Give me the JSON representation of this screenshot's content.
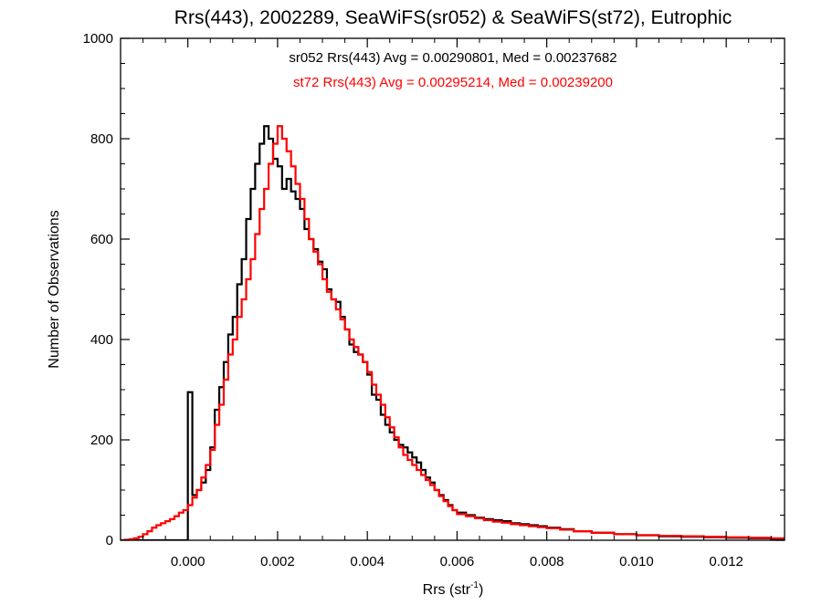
{
  "chart_data": {
    "type": "line",
    "title": "Rrs(443), 2002289, SeaWiFS(sr052) & SeaWiFS(st72), Eutrophic",
    "xlabel_main": "Rrs (str",
    "xlabel_sup": "-1",
    "xlabel_tail": ")",
    "ylabel": "Number of Observations",
    "xlim": [
      -0.0015,
      0.0133
    ],
    "ylim": [
      0,
      1000
    ],
    "x_ticks": [
      0.0,
      0.002,
      0.004,
      0.006,
      0.008,
      0.01,
      0.012
    ],
    "x_tick_labels": [
      "0.000",
      "0.002",
      "0.004",
      "0.006",
      "0.008",
      "0.010",
      "0.012"
    ],
    "y_ticks": [
      0,
      200,
      400,
      600,
      800,
      1000
    ],
    "y_tick_labels": [
      "0",
      "200",
      "400",
      "600",
      "800",
      "1000"
    ],
    "annotations": [
      {
        "text": "sr052 Rrs(443) Avg = 0.00290801, Med = 0.00237682",
        "color": "#000000"
      },
      {
        "text": "st72 Rrs(443) Avg = 0.00295214, Med = 0.00239200",
        "color": "#ff0000"
      }
    ],
    "series": [
      {
        "color": "#000000",
        "points": [
          [
            -0.0015,
            0
          ],
          [
            0.0,
            0
          ],
          [
            0.0,
            295
          ],
          [
            0.0001,
            90
          ],
          [
            0.0002,
            100
          ],
          [
            0.0003,
            115
          ],
          [
            0.0004,
            140
          ],
          [
            0.0005,
            185
          ],
          [
            0.0006,
            260
          ],
          [
            0.0007,
            305
          ],
          [
            0.0008,
            355
          ],
          [
            0.0009,
            410
          ],
          [
            0.001,
            445
          ],
          [
            0.0011,
            510
          ],
          [
            0.0012,
            560
          ],
          [
            0.0013,
            640
          ],
          [
            0.0014,
            700
          ],
          [
            0.0015,
            750
          ],
          [
            0.0016,
            790
          ],
          [
            0.0017,
            825
          ],
          [
            0.0018,
            800
          ],
          [
            0.0019,
            760
          ],
          [
            0.002,
            745
          ],
          [
            0.0021,
            700
          ],
          [
            0.0022,
            720
          ],
          [
            0.0023,
            695
          ],
          [
            0.0024,
            680
          ],
          [
            0.0025,
            660
          ],
          [
            0.0026,
            620
          ],
          [
            0.0027,
            600
          ],
          [
            0.0028,
            580
          ],
          [
            0.0029,
            555
          ],
          [
            0.003,
            540
          ],
          [
            0.0031,
            500
          ],
          [
            0.0032,
            480
          ],
          [
            0.0033,
            475
          ],
          [
            0.0034,
            445
          ],
          [
            0.0035,
            420
          ],
          [
            0.0036,
            390
          ],
          [
            0.0037,
            375
          ],
          [
            0.0038,
            370
          ],
          [
            0.0039,
            355
          ],
          [
            0.004,
            330
          ],
          [
            0.0041,
            290
          ],
          [
            0.0042,
            280
          ],
          [
            0.0043,
            250
          ],
          [
            0.0044,
            230
          ],
          [
            0.0045,
            215
          ],
          [
            0.0046,
            200
          ],
          [
            0.0047,
            190
          ],
          [
            0.0048,
            185
          ],
          [
            0.0049,
            175
          ],
          [
            0.005,
            165
          ],
          [
            0.0051,
            155
          ],
          [
            0.0052,
            140
          ],
          [
            0.0053,
            125
          ],
          [
            0.0054,
            115
          ],
          [
            0.0055,
            100
          ],
          [
            0.0056,
            90
          ],
          [
            0.0057,
            80
          ],
          [
            0.0058,
            70
          ],
          [
            0.0059,
            60
          ],
          [
            0.006,
            55
          ],
          [
            0.0062,
            50
          ],
          [
            0.0064,
            45
          ],
          [
            0.0066,
            42
          ],
          [
            0.0068,
            40
          ],
          [
            0.007,
            38
          ],
          [
            0.0072,
            34
          ],
          [
            0.0074,
            32
          ],
          [
            0.0076,
            30
          ],
          [
            0.0078,
            28
          ],
          [
            0.008,
            25
          ],
          [
            0.0083,
            22
          ],
          [
            0.0086,
            18
          ],
          [
            0.009,
            15
          ],
          [
            0.0095,
            12
          ],
          [
            0.01,
            10
          ],
          [
            0.0105,
            8
          ],
          [
            0.011,
            7
          ],
          [
            0.0115,
            6
          ],
          [
            0.012,
            5
          ],
          [
            0.0125,
            4
          ],
          [
            0.013,
            3
          ],
          [
            0.0133,
            3
          ]
        ]
      },
      {
        "color": "#ff0000",
        "points": [
          [
            -0.0015,
            0
          ],
          [
            -0.0014,
            1
          ],
          [
            -0.0013,
            2
          ],
          [
            -0.0012,
            4
          ],
          [
            -0.0011,
            7
          ],
          [
            -0.001,
            12
          ],
          [
            -0.0009,
            18
          ],
          [
            -0.0008,
            25
          ],
          [
            -0.0007,
            30
          ],
          [
            -0.0006,
            34
          ],
          [
            -0.0005,
            38
          ],
          [
            -0.0004,
            42
          ],
          [
            -0.0003,
            48
          ],
          [
            -0.0002,
            55
          ],
          [
            -0.0001,
            60
          ],
          [
            0.0,
            70
          ],
          [
            0.0001,
            85
          ],
          [
            0.0002,
            100
          ],
          [
            0.0003,
            125
          ],
          [
            0.0004,
            150
          ],
          [
            0.0005,
            180
          ],
          [
            0.0006,
            230
          ],
          [
            0.0007,
            270
          ],
          [
            0.0008,
            320
          ],
          [
            0.0009,
            370
          ],
          [
            0.001,
            400
          ],
          [
            0.0011,
            445
          ],
          [
            0.0012,
            480
          ],
          [
            0.0013,
            520
          ],
          [
            0.0014,
            560
          ],
          [
            0.0015,
            610
          ],
          [
            0.0016,
            660
          ],
          [
            0.0017,
            700
          ],
          [
            0.0018,
            750
          ],
          [
            0.0019,
            790
          ],
          [
            0.002,
            825
          ],
          [
            0.0021,
            800
          ],
          [
            0.0022,
            775
          ],
          [
            0.0023,
            745
          ],
          [
            0.0024,
            710
          ],
          [
            0.0025,
            680
          ],
          [
            0.0026,
            640
          ],
          [
            0.0027,
            600
          ],
          [
            0.0028,
            575
          ],
          [
            0.0029,
            550
          ],
          [
            0.003,
            520
          ],
          [
            0.0031,
            495
          ],
          [
            0.0032,
            480
          ],
          [
            0.0033,
            460
          ],
          [
            0.0034,
            440
          ],
          [
            0.0035,
            420
          ],
          [
            0.0036,
            400
          ],
          [
            0.0037,
            385
          ],
          [
            0.0038,
            370
          ],
          [
            0.0039,
            355
          ],
          [
            0.004,
            335
          ],
          [
            0.0041,
            310
          ],
          [
            0.0042,
            290
          ],
          [
            0.0043,
            270
          ],
          [
            0.0044,
            245
          ],
          [
            0.0045,
            225
          ],
          [
            0.0046,
            205
          ],
          [
            0.0047,
            185
          ],
          [
            0.0048,
            170
          ],
          [
            0.0049,
            160
          ],
          [
            0.005,
            150
          ],
          [
            0.0051,
            140
          ],
          [
            0.0052,
            130
          ],
          [
            0.0053,
            120
          ],
          [
            0.0054,
            110
          ],
          [
            0.0055,
            100
          ],
          [
            0.0056,
            88
          ],
          [
            0.0057,
            78
          ],
          [
            0.0058,
            68
          ],
          [
            0.0059,
            60
          ],
          [
            0.006,
            52
          ],
          [
            0.0062,
            48
          ],
          [
            0.0064,
            44
          ],
          [
            0.0066,
            40
          ],
          [
            0.0068,
            37
          ],
          [
            0.007,
            35
          ],
          [
            0.0072,
            32
          ],
          [
            0.0074,
            30
          ],
          [
            0.0076,
            28
          ],
          [
            0.0078,
            26
          ],
          [
            0.008,
            24
          ],
          [
            0.0083,
            21
          ],
          [
            0.0086,
            18
          ],
          [
            0.009,
            15
          ],
          [
            0.0095,
            12
          ],
          [
            0.01,
            10
          ],
          [
            0.0105,
            9
          ],
          [
            0.011,
            8
          ],
          [
            0.0115,
            7
          ],
          [
            0.012,
            6
          ],
          [
            0.0125,
            5
          ],
          [
            0.013,
            4
          ],
          [
            0.0133,
            4
          ]
        ]
      }
    ]
  }
}
